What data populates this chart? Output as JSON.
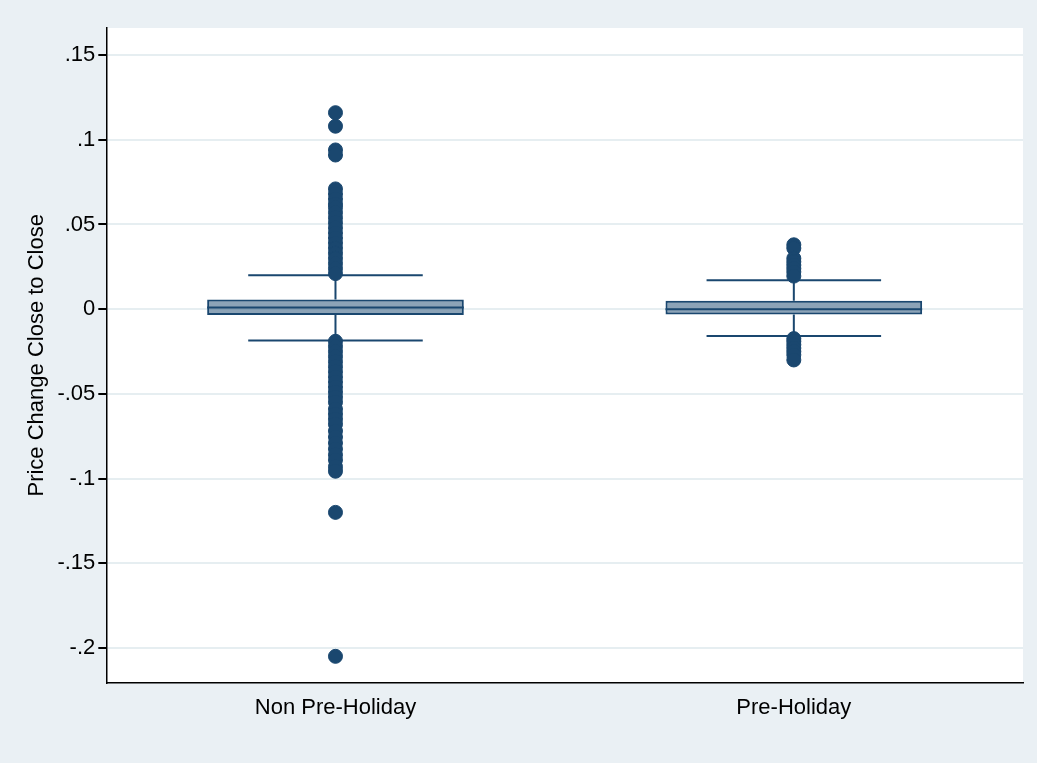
{
  "chart_data": {
    "type": "box",
    "ylabel": "Price Change Close to Close",
    "categories": [
      "Non Pre-Holiday",
      "Pre-Holiday"
    ],
    "color": "#1a476f",
    "boxes": [
      {
        "low": -0.0185,
        "q1": -0.0034,
        "median": 0.001,
        "q3": 0.0057,
        "high": 0.02,
        "outliers": [
          0.116,
          0.108,
          0.094,
          0.091,
          0.071,
          0.068,
          0.065,
          0.062,
          0.06,
          0.057,
          0.054,
          0.051,
          0.048,
          0.045,
          0.042,
          0.039,
          0.036,
          0.033,
          0.03,
          0.027,
          0.024,
          0.021,
          -0.019,
          -0.022,
          -0.025,
          -0.028,
          -0.031,
          -0.034,
          -0.037,
          -0.04,
          -0.043,
          -0.046,
          -0.049,
          -0.052,
          -0.055,
          -0.059,
          -0.062,
          -0.065,
          -0.068,
          -0.072,
          -0.0755,
          -0.079,
          -0.0825,
          -0.086,
          -0.089,
          -0.093,
          -0.0957,
          -0.12,
          -0.205
        ]
      },
      {
        "low": -0.0159,
        "q1": -0.0032,
        "median": 0.0,
        "q3": 0.005,
        "high": 0.017,
        "outliers": [
          0.038,
          0.036,
          0.03,
          0.028,
          0.026,
          0.024,
          0.022,
          0.0195,
          -0.0174,
          -0.019,
          -0.021,
          -0.023,
          -0.025,
          -0.027,
          -0.03
        ]
      }
    ],
    "ylim": [
      -0.2205,
      0.166
    ],
    "yticks": [
      {
        "value": -0.2,
        "label": "-.2"
      },
      {
        "value": -0.15,
        "label": "-.15"
      },
      {
        "value": -0.1,
        "label": "-.1"
      },
      {
        "value": -0.05,
        "label": "-.05"
      },
      0,
      {
        "value": 0.05,
        "label": ".05"
      },
      {
        "value": 0.1,
        "label": ".1"
      },
      {
        "value": 0.15,
        "label": ".15"
      }
    ],
    "grid": "y",
    "legend": false,
    "marker": "circle"
  }
}
